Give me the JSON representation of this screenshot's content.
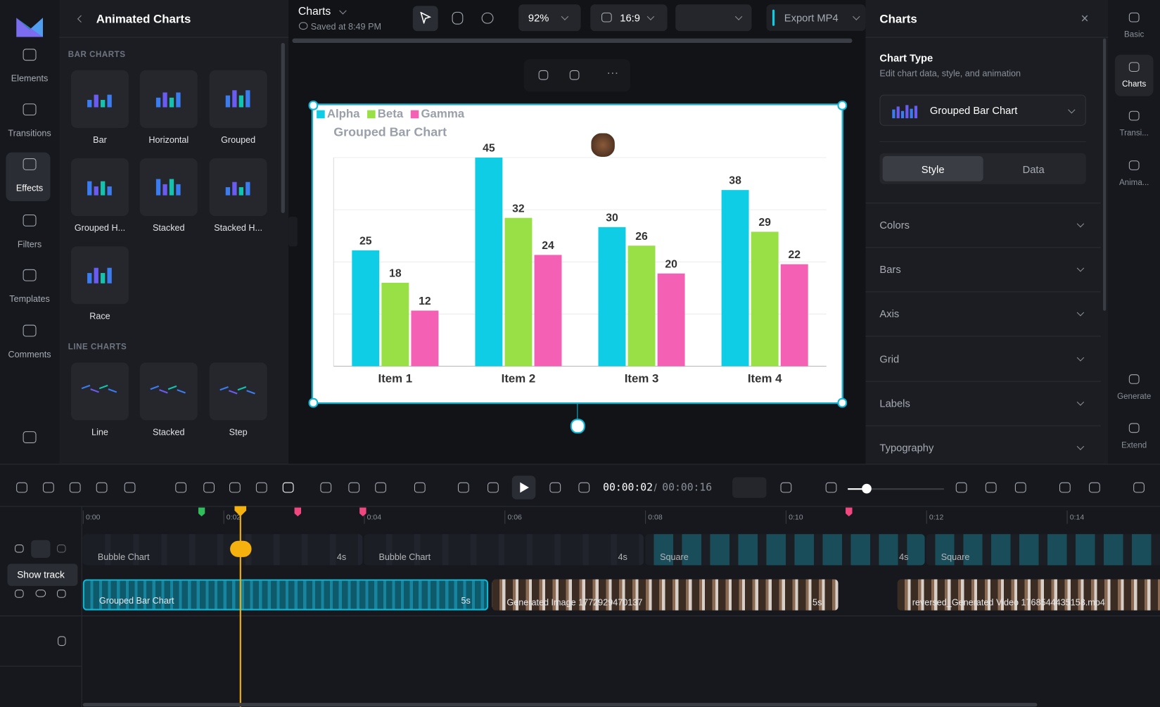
{
  "sidebar": {
    "items": [
      "Elements",
      "Transitions",
      "Effects",
      "Filters",
      "Templates",
      "Comments"
    ]
  },
  "panel": {
    "title": "Animated Charts",
    "sections": [
      {
        "heading": "BAR CHARTS",
        "items": [
          "Bar",
          "Horizontal",
          "Grouped",
          "Grouped H...",
          "Stacked",
          "Stacked H...",
          "Race"
        ]
      },
      {
        "heading": "LINE CHARTS",
        "items": [
          "Line",
          "Stacked",
          "Step"
        ]
      }
    ]
  },
  "topbar": {
    "project": "Charts",
    "saved": "Saved at 8:49 PM",
    "zoom": "92%",
    "ratio": "16:9",
    "export": "Export MP4"
  },
  "chart_data": {
    "type": "bar",
    "title": "Grouped Bar Chart",
    "categories": [
      "Item 1",
      "Item 2",
      "Item 3",
      "Item 4"
    ],
    "series": [
      {
        "name": "Alpha",
        "color": "#10cde6",
        "values": [
          25,
          45,
          30,
          38
        ]
      },
      {
        "name": "Beta",
        "color": "#98e046",
        "values": [
          18,
          32,
          26,
          29
        ]
      },
      {
        "name": "Gamma",
        "color": "#f460b4",
        "values": [
          12,
          24,
          20,
          22
        ]
      }
    ],
    "ylim": [
      0,
      45
    ],
    "yticks": [
      0,
      11.25,
      22.5,
      33.75,
      45
    ],
    "grid": true,
    "legend": "top-left"
  },
  "inspector": {
    "title": "Charts",
    "heading": "Chart Type",
    "subheading": "Edit chart data, style, and animation",
    "chart_type": "Grouped Bar Chart",
    "tabs": [
      "Style",
      "Data"
    ],
    "sections": [
      "Colors",
      "Bars",
      "Axis",
      "Grid",
      "Labels",
      "Typography"
    ]
  },
  "rail": {
    "items": [
      "Basic",
      "Charts",
      "Transi...",
      "Anima...",
      "Generate",
      "Extend"
    ]
  },
  "timeline": {
    "current": "00:00:02",
    "separator": "/",
    "total": "00:00:16",
    "ruler": [
      "0:00",
      "0:02",
      "0:04",
      "0:06",
      "0:08",
      "0:10",
      "0:12",
      "0:14"
    ],
    "tooltip": "Show track",
    "tracks": [
      [
        {
          "name": "Bubble Chart",
          "duration": "4s"
        },
        {
          "name": "Bubble Chart",
          "duration": "4s"
        },
        {
          "name": "Square",
          "duration": "4s"
        },
        {
          "name": "Square"
        }
      ],
      [
        {
          "name": "Grouped Bar Chart",
          "duration": "5s"
        },
        {
          "name": "Generated Image 1772929470137",
          "duration": "5s"
        },
        {
          "name": "reversed_Generated Video 1768544435158.mp4"
        }
      ]
    ]
  }
}
